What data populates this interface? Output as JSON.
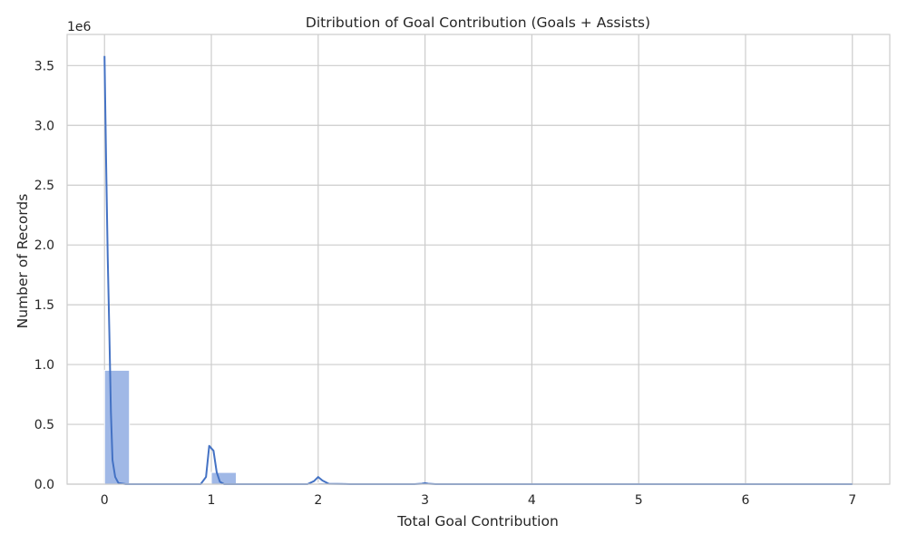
{
  "chart_data": {
    "type": "bar",
    "title": "Ditribution of Goal Contribution (Goals + Assists)",
    "xlabel": "Total Goal Contribution",
    "ylabel": "Number of Records",
    "y_offset_label": "1e6",
    "xlim": [
      -0.35,
      7.35
    ],
    "ylim": [
      0,
      3.76
    ],
    "x_ticks": [
      0,
      1,
      2,
      3,
      4,
      5,
      6,
      7
    ],
    "x_tick_labels": [
      "0",
      "1",
      "2",
      "3",
      "4",
      "5",
      "6",
      "7"
    ],
    "y_ticks": [
      0,
      0.5,
      1,
      1.5,
      2,
      2.5,
      3,
      3.5
    ],
    "y_tick_labels": [
      "0.0",
      "0.5",
      "1.0",
      "1.5",
      "2.0",
      "2.5",
      "3.0",
      "3.5"
    ],
    "grid": true,
    "colors": {
      "bars": "#a0b8e6",
      "bar_edge": "#ffffff",
      "kde": "#4472c4",
      "grid": "#cccccc"
    },
    "bins": [
      {
        "x0": 0.0,
        "x1": 0.2333,
        "value": 0.952
      },
      {
        "x0": 1.0,
        "x1": 1.2333,
        "value": 0.098
      },
      {
        "x0": 2.0,
        "x1": 2.2333,
        "value": 0.012
      },
      {
        "x0": 3.0,
        "x1": 3.2333,
        "value": 0.002
      },
      {
        "x0": 4.0,
        "x1": 4.2333,
        "value": 0.0004
      },
      {
        "x0": 5.0,
        "x1": 5.2333,
        "value": 0.0001
      },
      {
        "x0": 6.0,
        "x1": 6.2333,
        "value": 3e-05
      },
      {
        "x0": 7.0,
        "x1": 7.2333,
        "value": 1e-05
      }
    ],
    "kde": {
      "x": [
        0,
        0.015,
        0.03,
        0.045,
        0.06,
        0.075,
        0.1,
        0.13,
        0.2,
        0.5,
        0.9,
        0.95,
        0.98,
        1.02,
        1.05,
        1.08,
        1.12,
        1.2,
        1.5,
        1.9,
        1.96,
        2.0,
        2.04,
        2.1,
        2.3,
        2.9,
        2.97,
        3.0,
        3.03,
        3.1,
        3.5,
        4,
        5,
        6,
        7
      ],
      "y": [
        3.58,
        2.7,
        1.9,
        1.28,
        0.6,
        0.2,
        0.06,
        0.01,
        0,
        0,
        0,
        0.06,
        0.32,
        0.28,
        0.1,
        0.02,
        0,
        0,
        0,
        0,
        0.025,
        0.06,
        0.03,
        0.003,
        0,
        0,
        0.004,
        0.009,
        0.004,
        0,
        0,
        0,
        0,
        0,
        0
      ]
    }
  }
}
